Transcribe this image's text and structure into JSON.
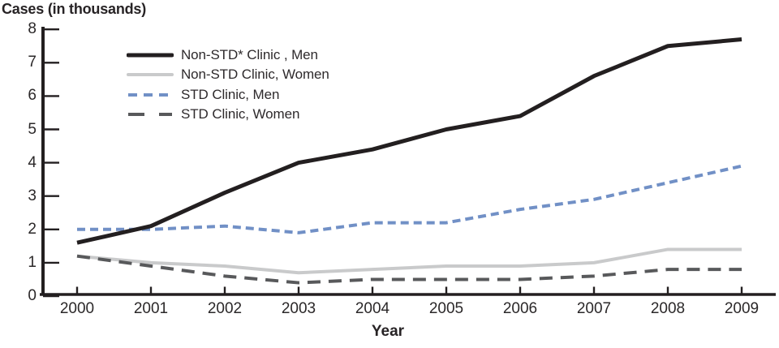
{
  "title": "Cases (in thousands)",
  "xlabel": "Year",
  "colors": {
    "axis": "#231f20",
    "text": "#2b2829"
  },
  "chart_data": {
    "type": "line",
    "title": "Cases (in thousands)",
    "xlabel": "Year",
    "ylabel": "Cases (in thousands)",
    "x": [
      2000,
      2001,
      2002,
      2003,
      2004,
      2005,
      2006,
      2007,
      2008,
      2009
    ],
    "ylim": [
      0,
      8
    ],
    "yticks": [
      0,
      1,
      2,
      3,
      4,
      5,
      6,
      7,
      8
    ],
    "grid": false,
    "legend_position": "inside-top-left",
    "series": [
      {
        "name": "Non-STD* Clinic , Men",
        "color": "#231f20",
        "style": "solid",
        "stroke_width": 5,
        "dash": null,
        "legend_dash": null,
        "values": [
          1.6,
          2.1,
          3.1,
          4.0,
          4.4,
          5.0,
          5.4,
          6.6,
          7.5,
          7.7
        ]
      },
      {
        "name": "Non-STD Clinic, Women",
        "color": "#c9cacb",
        "style": "solid",
        "stroke_width": 4,
        "dash": null,
        "legend_dash": null,
        "values": [
          1.2,
          1.0,
          0.9,
          0.7,
          0.8,
          0.9,
          0.9,
          1.0,
          1.4,
          1.4
        ]
      },
      {
        "name": "STD Clinic, Men",
        "color": "#7190c6",
        "style": "dashed",
        "stroke_width": 4,
        "dash": "10,6",
        "legend_dash": "11,8",
        "values": [
          2.0,
          2.0,
          2.1,
          1.9,
          2.2,
          2.2,
          2.6,
          2.9,
          3.4,
          3.9
        ]
      },
      {
        "name": "STD Clinic, Women",
        "color": "#58595b",
        "style": "dashed",
        "stroke_width": 4,
        "dash": "16,10",
        "legend_dash": "20,18",
        "values": [
          1.2,
          0.9,
          0.6,
          0.4,
          0.5,
          0.5,
          0.5,
          0.6,
          0.8,
          0.8
        ]
      }
    ]
  }
}
